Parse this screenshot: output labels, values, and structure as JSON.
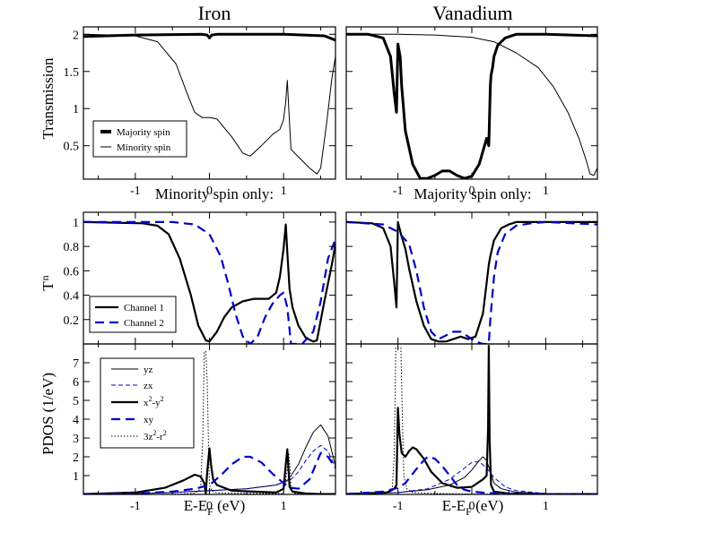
{
  "figure": {
    "title_left": "Iron",
    "title_right": "Vanadium"
  },
  "chart_data": [
    {
      "id": "transmission-iron",
      "type": "line",
      "ylabel": "Transmission",
      "xlabel": "Minority spin only:",
      "xlim": [
        -1.7,
        1.7
      ],
      "ylim": [
        0.05,
        2.1
      ],
      "xticks": [
        -1,
        0,
        1
      ],
      "yticks": [
        0.5,
        1,
        1.5,
        2
      ],
      "ytick_labels": [
        "0.5",
        "1",
        "1.5",
        "2"
      ],
      "legend": [
        "Majority spin",
        "Minority spin"
      ],
      "series": [
        {
          "name": "Majority spin",
          "color": "#000000",
          "width": 3,
          "dash": "",
          "x": [
            -1.7,
            -1.0,
            -0.1,
            -0.03,
            0.0,
            0.03,
            0.1,
            1.0,
            1.55,
            1.7
          ],
          "y": [
            1.97,
            1.99,
            2.0,
            1.99,
            1.95,
            1.99,
            2.0,
            2.0,
            1.98,
            1.92
          ]
        },
        {
          "name": "Minority spin",
          "color": "#000000",
          "width": 1,
          "dash": "",
          "x": [
            -1.7,
            -1.3,
            -1.0,
            -0.7,
            -0.45,
            -0.3,
            -0.2,
            -0.1,
            0.0,
            0.1,
            0.3,
            0.45,
            0.55,
            0.7,
            0.85,
            0.95,
            1.0,
            1.03,
            1.05,
            1.07,
            1.1,
            1.2,
            1.35,
            1.45,
            1.5,
            1.58,
            1.65,
            1.7
          ],
          "y": [
            2.0,
            1.99,
            1.98,
            1.9,
            1.6,
            1.2,
            0.95,
            0.88,
            0.88,
            0.86,
            0.62,
            0.4,
            0.36,
            0.5,
            0.65,
            0.72,
            0.85,
            1.1,
            1.38,
            1.0,
            0.45,
            0.35,
            0.2,
            0.12,
            0.2,
            0.8,
            1.4,
            1.7
          ]
        }
      ]
    },
    {
      "id": "transmission-vanadium",
      "type": "line",
      "xlabel": "Majority spin only:",
      "xlim": [
        -1.7,
        1.7
      ],
      "ylim": [
        0.05,
        2.1
      ],
      "xticks": [
        -1,
        0,
        1
      ],
      "series": [
        {
          "name": "Majority spin",
          "color": "#000000",
          "width": 3,
          "dash": "",
          "x": [
            -1.7,
            -1.4,
            -1.2,
            -1.1,
            -1.05,
            -1.02,
            -1.0,
            -0.97,
            -0.95,
            -0.9,
            -0.8,
            -0.7,
            -0.6,
            -0.5,
            -0.4,
            -0.3,
            -0.2,
            -0.1,
            0.0,
            0.1,
            0.2,
            0.23,
            0.25,
            0.26,
            0.28,
            0.3,
            0.35,
            0.45,
            0.6,
            1.0,
            1.7
          ],
          "y": [
            2.0,
            2.0,
            1.95,
            1.7,
            1.2,
            0.95,
            1.87,
            1.7,
            1.3,
            0.7,
            0.25,
            0.06,
            0.06,
            0.1,
            0.16,
            0.16,
            0.1,
            0.06,
            0.09,
            0.25,
            0.6,
            0.5,
            1.3,
            1.45,
            1.55,
            1.7,
            1.85,
            1.95,
            2.0,
            2.0,
            1.98
          ]
        },
        {
          "name": "Minority spin",
          "color": "#000000",
          "width": 1,
          "dash": "",
          "x": [
            -1.7,
            -1.0,
            -0.5,
            0.0,
            0.3,
            0.6,
            0.9,
            1.1,
            1.3,
            1.45,
            1.55,
            1.6,
            1.65,
            1.7
          ],
          "y": [
            2.0,
            2.0,
            1.99,
            1.96,
            1.9,
            1.75,
            1.55,
            1.3,
            0.95,
            0.6,
            0.3,
            0.12,
            0.1,
            0.2
          ]
        }
      ]
    },
    {
      "id": "channels-iron",
      "type": "line",
      "ylabel": "T",
      "ylabel_sub": "n",
      "xlim": [
        -1.7,
        1.7
      ],
      "ylim": [
        0.0,
        1.08
      ],
      "xticks": [
        -1,
        0,
        1
      ],
      "yticks": [
        0.2,
        0.4,
        0.6,
        0.8,
        1
      ],
      "ytick_labels": [
        "0.2",
        "0.4",
        "0.6",
        "0.8",
        "1"
      ],
      "legend": [
        "Channel 1",
        "Channel 2"
      ],
      "series": [
        {
          "name": "Channel 1",
          "color": "#000000",
          "width": 2.2,
          "dash": "",
          "x": [
            -1.7,
            -0.9,
            -0.7,
            -0.55,
            -0.4,
            -0.25,
            -0.15,
            -0.05,
            0.0,
            0.1,
            0.2,
            0.3,
            0.45,
            0.6,
            0.8,
            0.9,
            0.95,
            1.0,
            1.03,
            1.05,
            1.08,
            1.12,
            1.2,
            1.3,
            1.4,
            1.45,
            1.55,
            1.65,
            1.7
          ],
          "y": [
            1.0,
            0.99,
            0.97,
            0.9,
            0.7,
            0.4,
            0.15,
            0.03,
            0.02,
            0.1,
            0.22,
            0.3,
            0.35,
            0.37,
            0.37,
            0.42,
            0.55,
            0.78,
            0.98,
            0.75,
            0.45,
            0.3,
            0.15,
            0.05,
            0.02,
            0.03,
            0.35,
            0.65,
            0.82
          ]
        },
        {
          "name": "Channel 2",
          "color": "#0000cc",
          "width": 2.2,
          "dash": "10,6",
          "x": [
            -1.7,
            -0.5,
            -0.2,
            0.0,
            0.15,
            0.25,
            0.35,
            0.45,
            0.55,
            0.65,
            0.75,
            0.85,
            0.95,
            1.0,
            1.05,
            1.1,
            1.25,
            1.4,
            1.5,
            1.6,
            1.7
          ],
          "y": [
            1.0,
            1.0,
            0.98,
            0.9,
            0.72,
            0.5,
            0.25,
            0.06,
            0.0,
            0.06,
            0.22,
            0.33,
            0.4,
            0.42,
            0.3,
            0.0,
            0.0,
            0.1,
            0.35,
            0.7,
            0.86
          ]
        }
      ]
    },
    {
      "id": "channels-vanadium",
      "type": "line",
      "xlim": [
        -1.7,
        1.7
      ],
      "ylim": [
        0.0,
        1.08
      ],
      "xticks": [
        -1,
        0,
        1
      ],
      "series": [
        {
          "name": "Channel 1",
          "color": "#000000",
          "width": 2.2,
          "dash": "",
          "x": [
            -1.7,
            -1.35,
            -1.2,
            -1.1,
            -1.05,
            -1.02,
            -1.0,
            -0.98,
            -0.95,
            -0.9,
            -0.85,
            -0.75,
            -0.65,
            -0.55,
            -0.45,
            -0.35,
            -0.25,
            -0.15,
            -0.05,
            0.05,
            0.15,
            0.2,
            0.23,
            0.25,
            0.3,
            0.4,
            0.5,
            0.6,
            0.8,
            1.0,
            1.7
          ],
          "y": [
            1.0,
            0.99,
            0.95,
            0.8,
            0.5,
            0.3,
            1.0,
            0.95,
            0.88,
            0.78,
            0.62,
            0.35,
            0.15,
            0.04,
            0.02,
            0.02,
            0.04,
            0.06,
            0.04,
            0.06,
            0.25,
            0.5,
            0.65,
            0.72,
            0.85,
            0.95,
            0.98,
            1.0,
            1.0,
            1.0,
            1.0
          ]
        },
        {
          "name": "Channel 2",
          "color": "#0000cc",
          "width": 2.2,
          "dash": "10,6",
          "x": [
            -1.7,
            -1.2,
            -1.0,
            -0.85,
            -0.75,
            -0.65,
            -0.55,
            -0.45,
            -0.35,
            -0.25,
            -0.15,
            -0.05,
            0.05,
            0.15,
            0.2,
            0.23,
            0.25,
            0.3,
            0.35,
            0.45,
            0.6,
            0.8,
            1.0,
            1.7
          ],
          "y": [
            1.0,
            0.98,
            0.92,
            0.82,
            0.6,
            0.3,
            0.1,
            0.04,
            0.07,
            0.1,
            0.1,
            0.06,
            0.02,
            0.0,
            0.0,
            0.0,
            0.2,
            0.55,
            0.75,
            0.9,
            0.97,
            0.99,
            1.0,
            0.98
          ]
        }
      ]
    },
    {
      "id": "pdos-iron",
      "type": "line",
      "ylabel": "PDOS (1/eV)",
      "xlabel": "E-E",
      "xlabel_sub": "F",
      "xlabel_tail": " (eV)",
      "xlim": [
        -1.7,
        1.7
      ],
      "ylim": [
        0.0,
        8.0
      ],
      "xticks": [
        -1,
        0,
        1
      ],
      "xtick_labels": [
        "-1",
        "0",
        "1"
      ],
      "yticks": [
        1,
        2,
        3,
        4,
        5,
        6,
        7
      ],
      "ytick_labels": [
        "1",
        "2",
        "3",
        "4",
        "5",
        "6",
        "7"
      ],
      "legend": [
        "yz",
        "zx",
        "x2-y2",
        "xy",
        "3z2-r2"
      ],
      "series": [
        {
          "name": "yz",
          "color": "#000000",
          "width": 1,
          "dash": "",
          "x": [
            -1.7,
            -1.0,
            -0.5,
            0.0,
            0.5,
            0.9,
            1.05,
            1.1,
            1.2,
            1.3,
            1.4,
            1.5,
            1.6,
            1.7
          ],
          "y": [
            0.02,
            0.05,
            0.1,
            0.2,
            0.3,
            0.5,
            0.75,
            1.0,
            1.6,
            2.5,
            3.3,
            3.7,
            3.1,
            1.5
          ]
        },
        {
          "name": "zx",
          "color": "#0000cc",
          "width": 1,
          "dash": "5,3",
          "x": [
            -1.7,
            -1.0,
            -0.5,
            0.0,
            0.5,
            0.9,
            1.1,
            1.2,
            1.3,
            1.4,
            1.5,
            1.6,
            1.7
          ],
          "y": [
            0.02,
            0.05,
            0.1,
            0.2,
            0.3,
            0.5,
            0.8,
            1.2,
            1.8,
            2.3,
            2.6,
            2.3,
            1.4
          ]
        },
        {
          "name": "x2-y2",
          "color": "#000000",
          "width": 2.2,
          "dash": "",
          "x": [
            -1.7,
            -1.0,
            -0.6,
            -0.35,
            -0.2,
            -0.12,
            -0.07,
            -0.05,
            -0.03,
            0.0,
            0.02,
            0.05,
            0.1,
            0.3,
            0.6,
            0.9,
            1.0,
            1.03,
            1.05,
            1.08,
            1.12,
            1.3,
            1.5,
            1.7
          ],
          "y": [
            0.02,
            0.1,
            0.35,
            0.75,
            1.05,
            0.95,
            0.6,
            0.05,
            1.2,
            2.45,
            1.6,
            0.8,
            0.5,
            0.2,
            0.15,
            0.1,
            0.3,
            1.6,
            2.4,
            0.4,
            0.15,
            0.05,
            0.02,
            0.02
          ]
        },
        {
          "name": "xy",
          "color": "#0000cc",
          "width": 2.2,
          "dash": "10,6",
          "x": [
            -1.7,
            -1.0,
            -0.5,
            -0.2,
            0.0,
            0.15,
            0.3,
            0.45,
            0.55,
            0.7,
            0.85,
            1.0,
            1.1,
            1.2,
            1.35,
            1.5,
            1.6,
            1.7
          ],
          "y": [
            0.02,
            0.05,
            0.15,
            0.3,
            0.5,
            1.0,
            1.6,
            2.0,
            2.0,
            1.7,
            1.1,
            0.6,
            0.35,
            0.3,
            0.8,
            2.2,
            2.0,
            1.4
          ]
        },
        {
          "name": "3z2-r2",
          "color": "#000000",
          "width": 1,
          "dash": "1.5,2",
          "x": [
            -1.7,
            -0.6,
            -0.2,
            -0.12,
            -0.09,
            -0.07,
            -0.05,
            -0.03,
            -0.01,
            0.0,
            0.03,
            0.1,
            0.5,
            1.0,
            1.05,
            1.07,
            1.09,
            1.1,
            1.15,
            1.7
          ],
          "y": [
            0.0,
            0.0,
            0.05,
            0.3,
            3.0,
            7.6,
            7.6,
            6.0,
            2.0,
            0.5,
            0.2,
            0.08,
            0.05,
            0.05,
            1.4,
            2.2,
            1.2,
            0.3,
            0.05,
            0.0
          ]
        }
      ]
    },
    {
      "id": "pdos-vanadium",
      "type": "line",
      "xlabel": "E-E",
      "xlabel_sub": "F",
      "xlabel_tail": " (eV)",
      "xlim": [
        -1.7,
        1.7
      ],
      "ylim": [
        0.0,
        8.0
      ],
      "xticks": [
        -1,
        0,
        1
      ],
      "xtick_labels": [
        "-1",
        "0",
        "1"
      ],
      "series": [
        {
          "name": "yz",
          "color": "#000000",
          "width": 1,
          "dash": "",
          "x": [
            -1.7,
            -1.0,
            -0.6,
            -0.3,
            -0.1,
            0.0,
            0.1,
            0.15,
            0.2,
            0.25,
            0.3,
            0.4,
            0.6,
            1.0,
            1.7
          ],
          "y": [
            0.02,
            0.1,
            0.25,
            0.5,
            0.9,
            1.3,
            1.8,
            2.0,
            1.8,
            1.2,
            0.6,
            0.3,
            0.12,
            0.05,
            0.02
          ]
        },
        {
          "name": "zx",
          "color": "#0000cc",
          "width": 1,
          "dash": "5,3",
          "x": [
            -1.7,
            -1.0,
            -0.6,
            -0.3,
            -0.1,
            0.0,
            0.1,
            0.2,
            0.3,
            0.45,
            0.6,
            1.0,
            1.7
          ],
          "y": [
            0.02,
            0.1,
            0.3,
            0.8,
            1.4,
            1.7,
            1.75,
            1.4,
            0.9,
            0.4,
            0.2,
            0.05,
            0.02
          ]
        },
        {
          "name": "x2-y2",
          "color": "#000000",
          "width": 2.2,
          "dash": "",
          "x": [
            -1.7,
            -1.15,
            -1.05,
            -1.02,
            -1.0,
            -0.98,
            -0.95,
            -0.9,
            -0.85,
            -0.8,
            -0.75,
            -0.65,
            -0.55,
            -0.4,
            -0.2,
            0.0,
            0.15,
            0.2,
            0.22,
            0.23,
            0.24,
            0.26,
            0.3,
            0.5,
            1.0,
            1.7
          ],
          "y": [
            0.02,
            0.1,
            0.3,
            0.5,
            4.6,
            3.2,
            2.2,
            2.0,
            2.3,
            2.5,
            2.4,
            1.9,
            1.2,
            0.6,
            0.35,
            0.4,
            0.8,
            1.0,
            3.5,
            7.9,
            3.0,
            0.5,
            0.15,
            0.05,
            0.02,
            0.02
          ]
        },
        {
          "name": "xy",
          "color": "#0000cc",
          "width": 2.2,
          "dash": "10,6",
          "x": [
            -1.7,
            -1.2,
            -1.0,
            -0.9,
            -0.8,
            -0.7,
            -0.6,
            -0.5,
            -0.4,
            -0.3,
            -0.2,
            -0.1,
            0.0,
            0.2,
            0.5,
            1.0,
            1.7
          ],
          "y": [
            0.02,
            0.15,
            0.35,
            0.6,
            1.1,
            1.6,
            2.0,
            1.9,
            1.5,
            1.0,
            0.5,
            0.25,
            0.15,
            0.08,
            0.04,
            0.02,
            0.02
          ]
        },
        {
          "name": "3z2-r2",
          "color": "#000000",
          "width": 1,
          "dash": "1.5,2",
          "x": [
            -1.7,
            -1.2,
            -1.08,
            -1.05,
            -1.03,
            -1.01,
            -0.98,
            -0.96,
            -0.94,
            -0.92,
            -0.88,
            -0.8,
            -0.5,
            0.0,
            1.7
          ],
          "y": [
            0.0,
            0.02,
            0.2,
            2.0,
            7.8,
            7.8,
            7.8,
            7.8,
            4.0,
            1.0,
            0.3,
            0.1,
            0.05,
            0.02,
            0.0
          ]
        }
      ]
    }
  ],
  "legends": {
    "transmission": {
      "majority": "Majority spin",
      "minority": "Minority spin"
    },
    "channels": {
      "ch1": "Channel 1",
      "ch2": "Channel 2"
    },
    "pdos": {
      "yz": "yz",
      "zx": "zx",
      "x2y2_base": "x",
      "x2y2_sup1": "2",
      "x2y2_mid": "-y",
      "x2y2_sup2": "2",
      "xy": "xy",
      "z2_base": "3z",
      "z2_sup1": "2",
      "z2_mid": "-r",
      "z2_sup2": "2"
    }
  },
  "colors": {
    "black": "#000000",
    "blue": "#0000cc"
  }
}
